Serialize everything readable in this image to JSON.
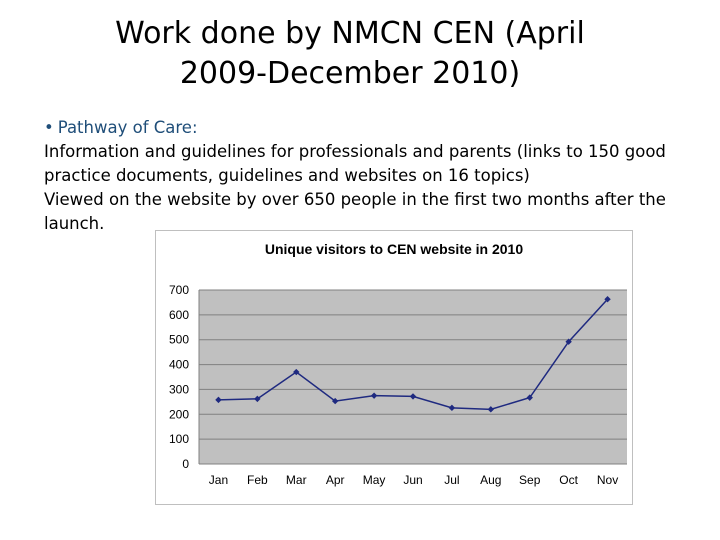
{
  "slide": {
    "title_line1": "Work done by NMCN CEN (April",
    "title_line2": "2009-December 2010)",
    "bullet": "•",
    "bullet_heading": "Pathway of Care:",
    "lines": [
      "Information and guidelines for professionals and parents (links to 150 good",
      "practice documents, guidelines and websites on 16 topics)",
      "Viewed on the website by over 650 people in the first two months after the",
      "launch."
    ]
  },
  "chart_data": {
    "type": "line",
    "title": "Unique visitors to CEN website in 2010",
    "categories": [
      "Jan",
      "Feb",
      "Mar",
      "Apr",
      "May",
      "Jun",
      "Jul",
      "Aug",
      "Sep",
      "Oct",
      "Nov"
    ],
    "series": [
      {
        "values": [
          258,
          262,
          370,
          253,
          275,
          272,
          226,
          220,
          267,
          492,
          663
        ]
      }
    ],
    "ylim": [
      0,
      700
    ],
    "yticks": [
      0,
      100,
      200,
      300,
      400,
      500,
      600,
      700
    ],
    "xlabel": "",
    "ylabel": "",
    "grid": true,
    "legend": "none",
    "colors": {
      "line": "#1f2a80",
      "plot_bg": "#c0c0c0",
      "grid": "#808080",
      "frame": "#bfbfbf"
    }
  }
}
